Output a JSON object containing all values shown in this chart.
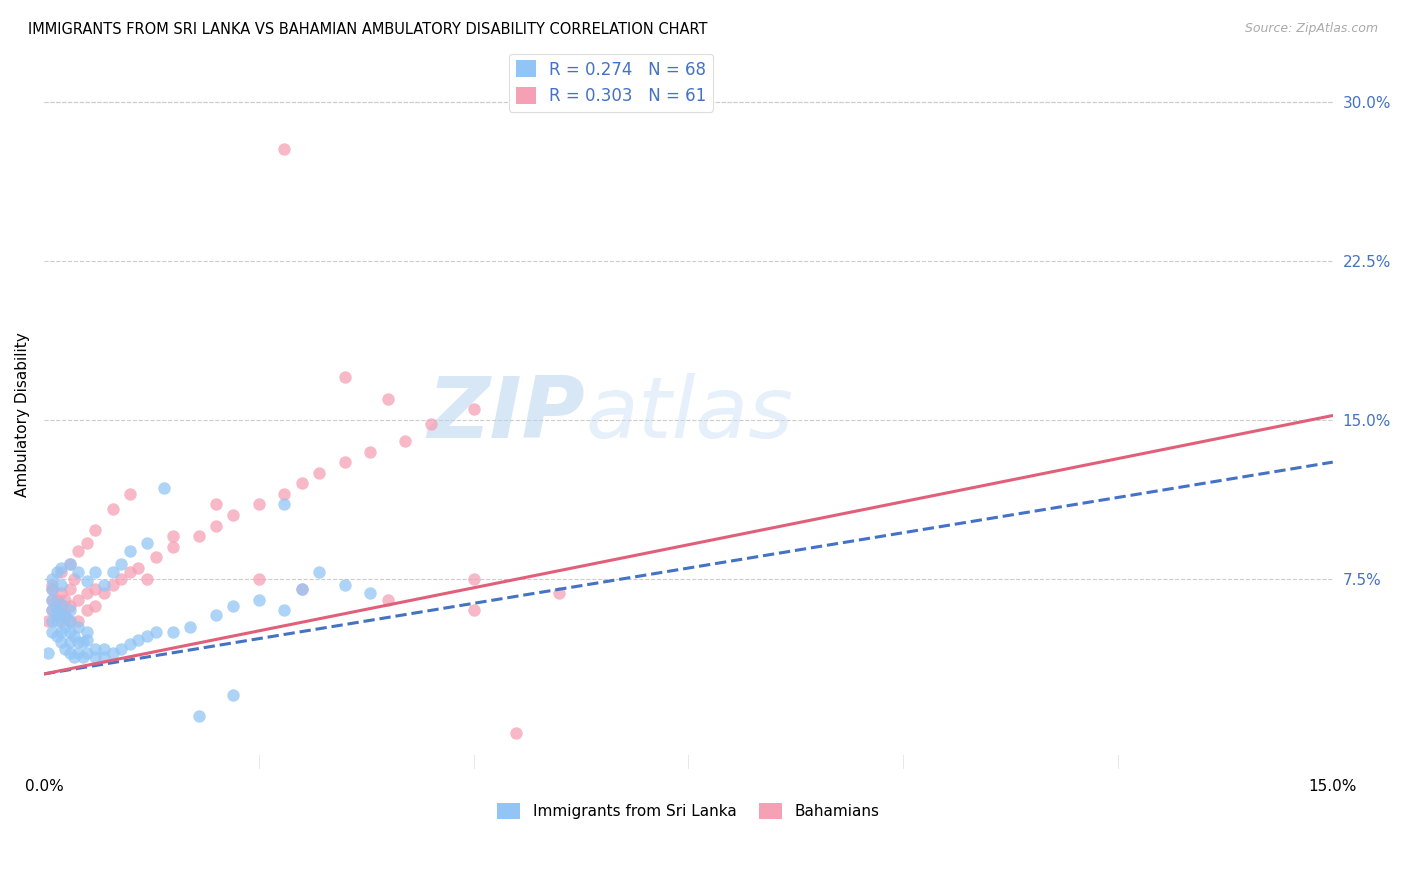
{
  "title": "IMMIGRANTS FROM SRI LANKA VS BAHAMIAN AMBULATORY DISABILITY CORRELATION CHART",
  "source": "Source: ZipAtlas.com",
  "ylabel": "Ambulatory Disability",
  "right_yticks": [
    "30.0%",
    "22.5%",
    "15.0%",
    "7.5%"
  ],
  "right_ytick_vals": [
    0.3,
    0.225,
    0.15,
    0.075
  ],
  "xlim": [
    0.0,
    0.15
  ],
  "ylim": [
    -0.015,
    0.32
  ],
  "sri_lanka_color": "#92c5f5",
  "bahamian_color": "#f5a0b5",
  "sri_lanka_line_color": "#4472c4",
  "bahamian_line_color": "#e0607a",
  "watermark_zip": "ZIP",
  "watermark_atlas": "atlas",
  "bottom_legend_1": "Immigrants from Sri Lanka",
  "bottom_legend_2": "Bahamians",
  "sri_lanka_x": [
    0.0005,
    0.001,
    0.001,
    0.001,
    0.001,
    0.0015,
    0.0015,
    0.0015,
    0.002,
    0.002,
    0.002,
    0.002,
    0.0025,
    0.0025,
    0.0025,
    0.003,
    0.003,
    0.003,
    0.003,
    0.003,
    0.0035,
    0.0035,
    0.004,
    0.004,
    0.004,
    0.0045,
    0.0045,
    0.005,
    0.005,
    0.005,
    0.006,
    0.006,
    0.007,
    0.007,
    0.008,
    0.009,
    0.01,
    0.011,
    0.012,
    0.013,
    0.015,
    0.017,
    0.02,
    0.022,
    0.025,
    0.028,
    0.03,
    0.032,
    0.035,
    0.038,
    0.001,
    0.001,
    0.0015,
    0.002,
    0.002,
    0.003,
    0.004,
    0.005,
    0.006,
    0.007,
    0.008,
    0.009,
    0.01,
    0.012,
    0.014,
    0.018,
    0.022,
    0.028
  ],
  "sri_lanka_y": [
    0.04,
    0.05,
    0.055,
    0.06,
    0.065,
    0.048,
    0.055,
    0.06,
    0.045,
    0.05,
    0.058,
    0.063,
    0.042,
    0.052,
    0.057,
    0.04,
    0.045,
    0.05,
    0.055,
    0.06,
    0.038,
    0.048,
    0.04,
    0.045,
    0.052,
    0.038,
    0.045,
    0.04,
    0.046,
    0.05,
    0.038,
    0.042,
    0.038,
    0.042,
    0.04,
    0.042,
    0.044,
    0.046,
    0.048,
    0.05,
    0.05,
    0.052,
    0.058,
    0.062,
    0.065,
    0.06,
    0.07,
    0.078,
    0.072,
    0.068,
    0.07,
    0.075,
    0.078,
    0.08,
    0.072,
    0.082,
    0.078,
    0.074,
    0.078,
    0.072,
    0.078,
    0.082,
    0.088,
    0.092,
    0.118,
    0.01,
    0.02,
    0.11
  ],
  "bahamian_x": [
    0.0005,
    0.001,
    0.001,
    0.001,
    0.0015,
    0.0015,
    0.002,
    0.002,
    0.002,
    0.0025,
    0.0025,
    0.003,
    0.003,
    0.003,
    0.0035,
    0.004,
    0.004,
    0.005,
    0.005,
    0.006,
    0.006,
    0.007,
    0.008,
    0.009,
    0.01,
    0.011,
    0.013,
    0.015,
    0.018,
    0.02,
    0.022,
    0.025,
    0.028,
    0.03,
    0.032,
    0.035,
    0.038,
    0.042,
    0.045,
    0.05,
    0.001,
    0.002,
    0.003,
    0.004,
    0.005,
    0.006,
    0.008,
    0.01,
    0.012,
    0.015,
    0.02,
    0.025,
    0.03,
    0.04,
    0.05,
    0.06,
    0.028,
    0.035,
    0.04,
    0.05,
    0.055
  ],
  "bahamian_y": [
    0.055,
    0.06,
    0.065,
    0.07,
    0.058,
    0.065,
    0.055,
    0.062,
    0.068,
    0.058,
    0.065,
    0.055,
    0.062,
    0.07,
    0.075,
    0.055,
    0.065,
    0.06,
    0.068,
    0.062,
    0.07,
    0.068,
    0.072,
    0.075,
    0.078,
    0.08,
    0.085,
    0.09,
    0.095,
    0.1,
    0.105,
    0.11,
    0.115,
    0.12,
    0.125,
    0.13,
    0.135,
    0.14,
    0.148,
    0.155,
    0.072,
    0.078,
    0.082,
    0.088,
    0.092,
    0.098,
    0.108,
    0.115,
    0.075,
    0.095,
    0.11,
    0.075,
    0.07,
    0.065,
    0.06,
    0.068,
    0.278,
    0.17,
    0.16,
    0.075,
    0.002
  ],
  "sri_lanka_line_x": [
    0.0,
    0.15
  ],
  "sri_lanka_line_y": [
    0.03,
    0.13
  ],
  "bahamian_line_x": [
    0.0,
    0.15
  ],
  "bahamian_line_y": [
    0.03,
    0.152
  ]
}
